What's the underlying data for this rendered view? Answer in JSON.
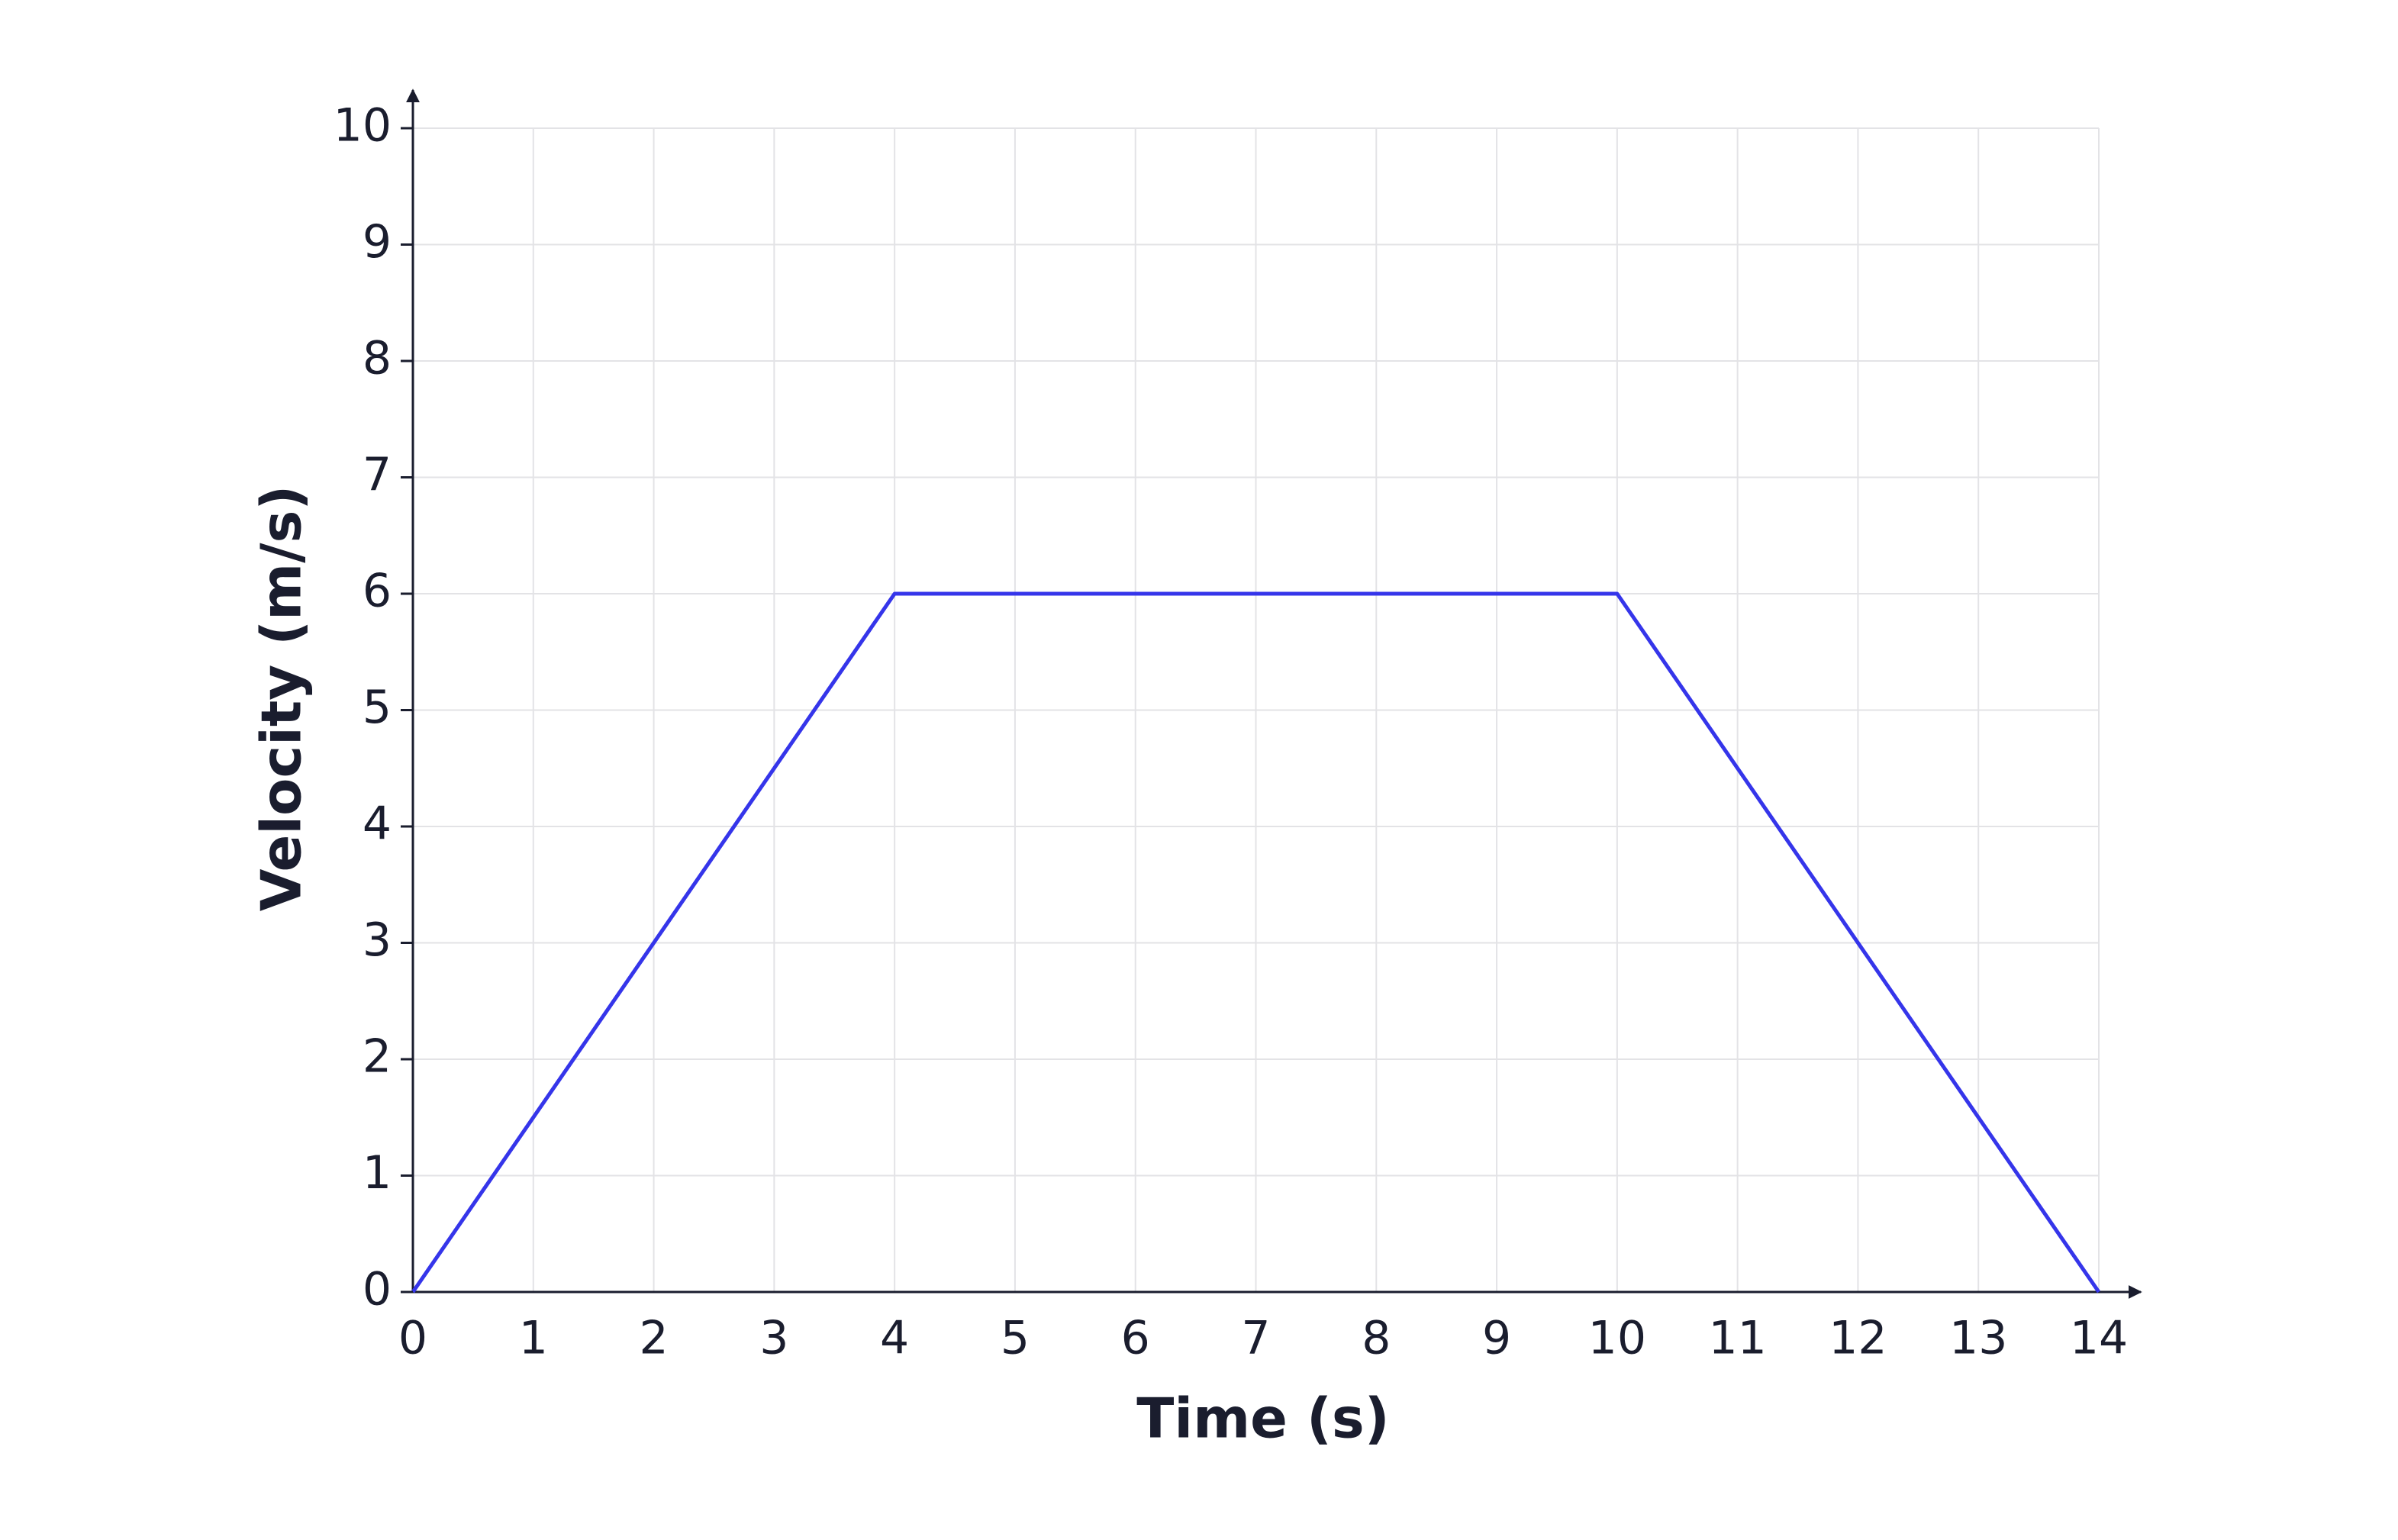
{
  "chart_data": {
    "type": "line",
    "x_label": "Time (s)",
    "y_label": "Velocity (m/s)",
    "x": [
      0,
      4,
      10,
      14
    ],
    "series": [
      {
        "color": "#3535ea",
        "values": [
          0,
          6,
          6,
          0
        ]
      }
    ],
    "xlim": [
      0,
      14
    ],
    "xticks": [
      0,
      1,
      2,
      3,
      4,
      5,
      6,
      7,
      8,
      9,
      10,
      11,
      12,
      13,
      14
    ],
    "ylim": [
      0,
      10
    ],
    "yticks": [
      0,
      1,
      2,
      3,
      4,
      5,
      6,
      7,
      8,
      9,
      10
    ],
    "grid": true
  }
}
